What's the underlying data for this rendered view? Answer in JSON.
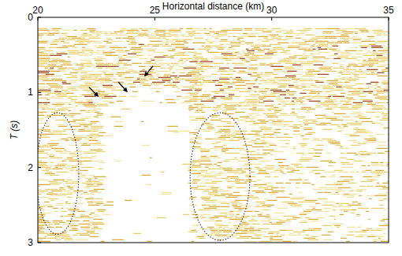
{
  "chart_data": {
    "type": "seismic",
    "x_label": "Horizontal distance (km)",
    "y_label": "T (s)",
    "xlim": [
      20,
      35
    ],
    "xticks": [
      20,
      25,
      30,
      35
    ],
    "ylim": [
      0,
      3
    ],
    "yticks": [
      0,
      1,
      2,
      3
    ],
    "ellipses": [
      {
        "cx": 20.84,
        "cy": 2.08,
        "rx": 0.91,
        "ry": 0.81
      },
      {
        "cx": 27.79,
        "cy": 2.12,
        "rx": 1.28,
        "ry": 0.85
      }
    ],
    "arrows": [
      {
        "x": 22.6,
        "y": 1.06,
        "x_from": 22.19,
        "y_from": 0.93
      },
      {
        "x": 23.84,
        "y": 1.0,
        "x_from": 23.44,
        "y_from": 0.86
      },
      {
        "x": 24.55,
        "y": 0.79,
        "x_from": 24.92,
        "y_from": 0.65
      }
    ]
  }
}
